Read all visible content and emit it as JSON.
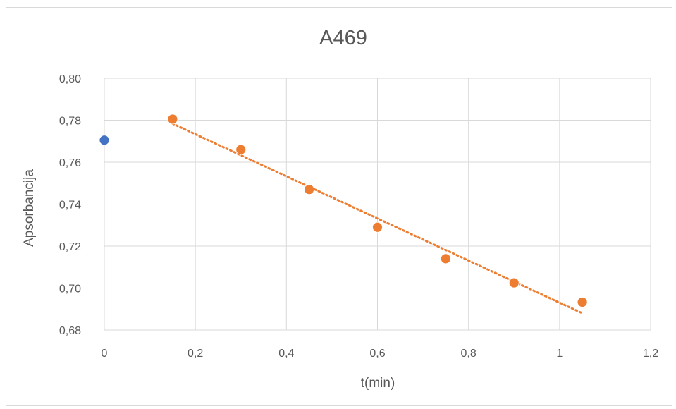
{
  "chart_data": {
    "type": "scatter",
    "title": "A469",
    "xlabel": "t(min)",
    "ylabel": "Apsorbancija",
    "xlim": [
      0,
      1.2
    ],
    "ylim": [
      0.68,
      0.8
    ],
    "x_ticks": [
      "0",
      "0,2",
      "0,4",
      "0,6",
      "0,8",
      "1",
      "1,2"
    ],
    "y_ticks": [
      "0,68",
      "0,70",
      "0,72",
      "0,74",
      "0,76",
      "0,78",
      "0,80"
    ],
    "grid": true,
    "legend": "none",
    "series": [
      {
        "color": "#4472c4",
        "points": [
          {
            "x": 0,
            "y": 0.7705
          }
        ]
      },
      {
        "color": "#ed7d31",
        "points": [
          {
            "x": 0.15,
            "y": 0.7805
          },
          {
            "x": 0.3,
            "y": 0.766
          },
          {
            "x": 0.45,
            "y": 0.747
          },
          {
            "x": 0.6,
            "y": 0.729
          },
          {
            "x": 0.75,
            "y": 0.714
          },
          {
            "x": 0.9,
            "y": 0.7025
          },
          {
            "x": 1.05,
            "y": 0.6933
          }
        ],
        "trendline": {
          "type": "linear",
          "style": "dotted",
          "from_x": 0.15,
          "to_x": 1.05
        }
      }
    ]
  }
}
